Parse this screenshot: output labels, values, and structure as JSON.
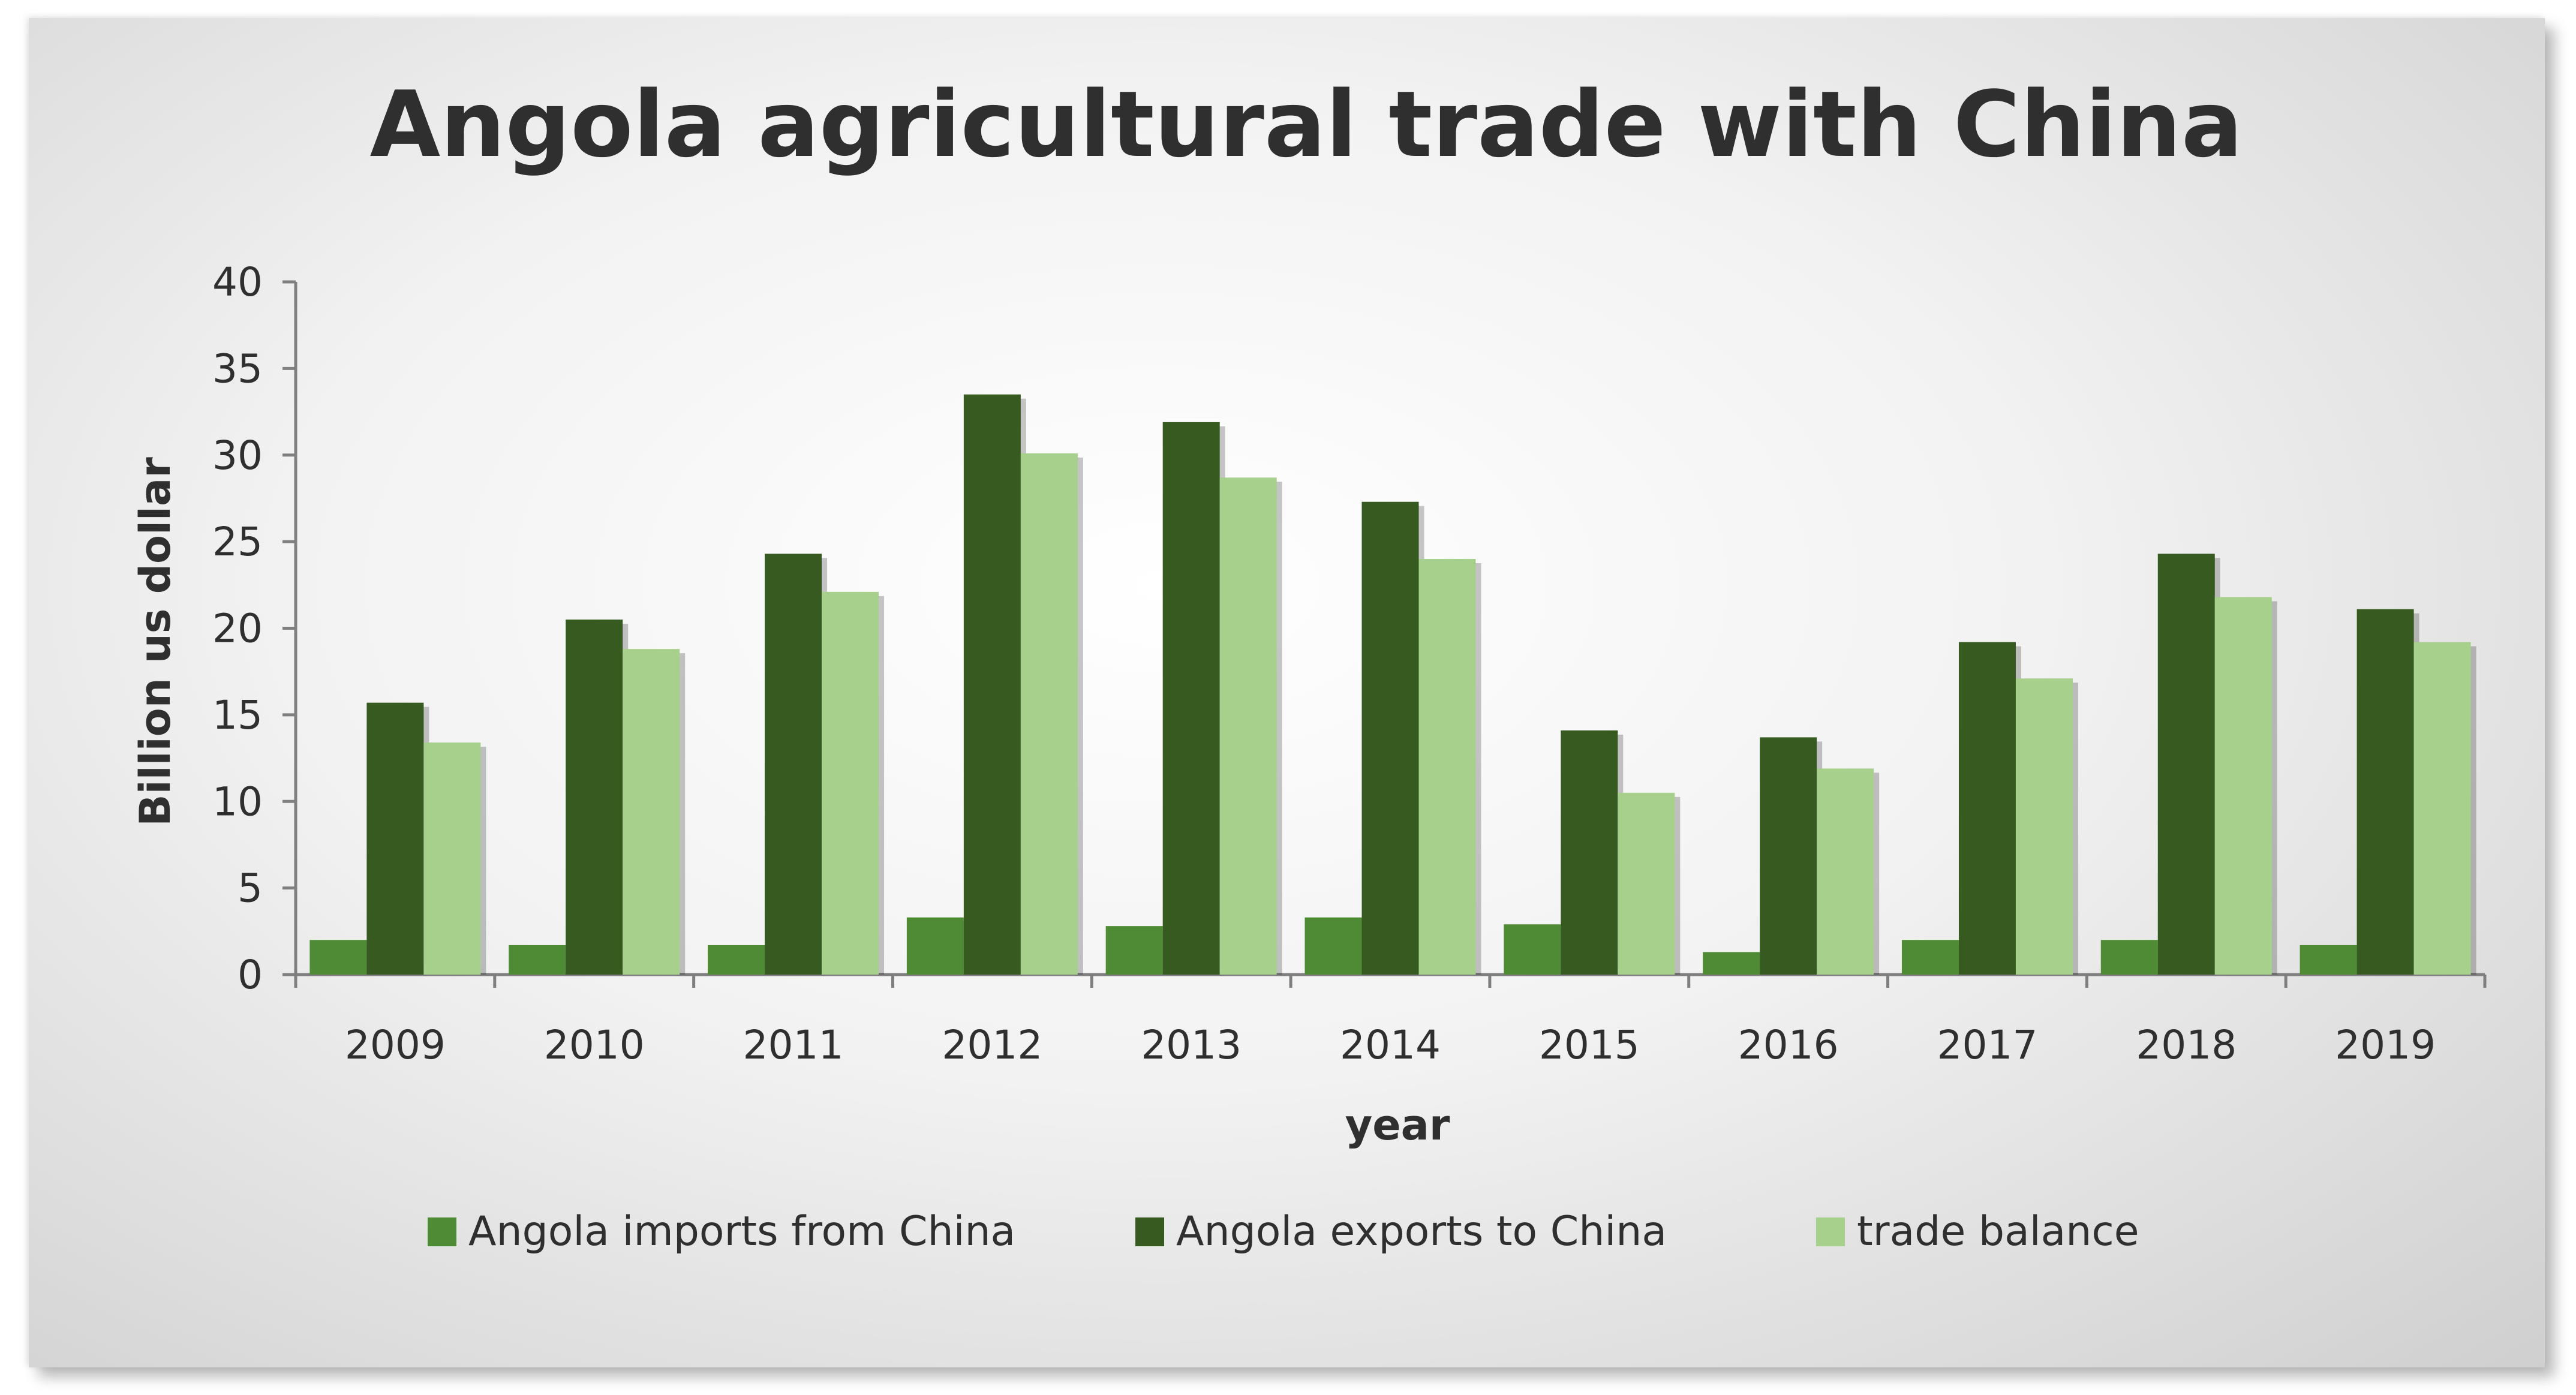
{
  "chart_data": {
    "type": "bar",
    "title": "Angola agricultural trade with China",
    "xlabel": "year",
    "ylabel": "Billion us dollar",
    "ylim": [
      0,
      40
    ],
    "yticks": [
      "0",
      "5",
      "10",
      "15",
      "20",
      "25",
      "30",
      "35",
      "40"
    ],
    "categories": [
      "2009",
      "2010",
      "2011",
      "2012",
      "2013",
      "2014",
      "2015",
      "2016",
      "2017",
      "2018",
      "2019"
    ],
    "series": [
      {
        "name": "Angola imports from China",
        "color": "#4f8a34",
        "values": [
          2.0,
          1.7,
          1.7,
          3.3,
          2.8,
          3.3,
          2.9,
          1.3,
          2.0,
          2.0,
          1.7
        ]
      },
      {
        "name": "Angola exports to China",
        "color": "#365a20",
        "values": [
          15.7,
          20.5,
          24.3,
          33.5,
          31.9,
          27.3,
          14.1,
          13.7,
          19.2,
          24.3,
          21.1
        ]
      },
      {
        "name": "trade balance",
        "color": "#a8d08d",
        "values": [
          13.4,
          18.8,
          22.1,
          30.1,
          28.7,
          24.0,
          10.5,
          11.9,
          17.1,
          21.8,
          19.2
        ]
      }
    ],
    "grid": false,
    "legend_position": "bottom"
  }
}
